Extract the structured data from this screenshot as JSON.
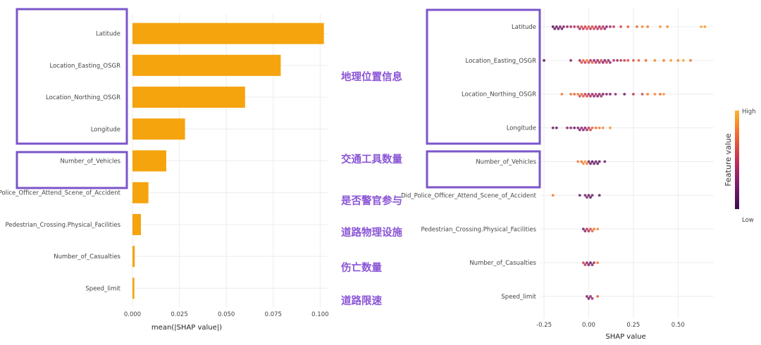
{
  "chart_data": [
    {
      "type": "bar",
      "orientation": "horizontal",
      "title": "",
      "xlabel": "mean(|SHAP value|)",
      "ylabel": "",
      "xlim": [
        0,
        0.104
      ],
      "xticks": [
        0.0,
        0.025,
        0.05,
        0.075,
        0.1
      ],
      "xtick_labels": [
        "0.000",
        "0.025",
        "0.050",
        "0.075",
        "0.100"
      ],
      "color": "#f5a40e",
      "categories": [
        "Latitude",
        "Location_Easting_OSGR",
        "Location_Northing_OSGR",
        "Longitude",
        "Number_of_Vehicles",
        "Did_Police_Officer_Attend_Scene_of_Accident",
        "Pedestrian_Crossing.Physical_Facilities",
        "Number_of_Casualties",
        "Speed_limit"
      ],
      "values": [
        0.102,
        0.079,
        0.06,
        0.028,
        0.018,
        0.0085,
        0.0045,
        0.0012,
        0.001
      ]
    },
    {
      "type": "scatter",
      "subtype": "beeswarm",
      "title": "",
      "xlabel": "SHAP value",
      "ylabel": "",
      "xlim": [
        -0.27,
        0.7
      ],
      "xticks": [
        -0.25,
        0.0,
        0.25,
        0.5
      ],
      "xtick_labels": [
        "-0.25",
        "0.00",
        "0.25",
        "0.50"
      ],
      "categories": [
        "Latitude",
        "Location_Easting_OSGR",
        "Location_Northing_OSGR",
        "Longitude",
        "Number_of_Vehicles",
        "Did_Police_Officer_Attend_Scene_of_Accident",
        "Pedestrian_Crossing.Physical_Facilities",
        "Number_of_Casualties",
        "Speed_limit"
      ],
      "series": [
        {
          "name": "Latitude",
          "x": [
            -0.2,
            -0.19,
            -0.18,
            -0.17,
            -0.16,
            -0.15,
            -0.14,
            -0.12,
            -0.1,
            -0.08,
            -0.06,
            -0.05,
            -0.04,
            -0.03,
            -0.02,
            -0.01,
            0.0,
            0.01,
            0.02,
            0.03,
            0.04,
            0.05,
            0.06,
            0.07,
            0.08,
            0.09,
            0.1,
            0.12,
            0.14,
            0.18,
            0.22,
            0.27,
            0.3,
            0.33,
            0.4,
            0.44,
            0.63,
            0.65
          ],
          "v": [
            0.1,
            0.15,
            0.2,
            0.15,
            0.25,
            0.2,
            0.3,
            0.35,
            0.4,
            0.45,
            0.5,
            0.4,
            0.6,
            0.5,
            0.55,
            0.6,
            0.65,
            0.5,
            0.6,
            0.55,
            0.5,
            0.45,
            0.4,
            0.5,
            0.45,
            0.35,
            0.3,
            0.4,
            0.5,
            0.6,
            0.7,
            0.75,
            0.85,
            0.8,
            0.9,
            0.85,
            0.95,
            0.9
          ]
        },
        {
          "name": "Location_Easting_OSGR",
          "x": [
            -0.25,
            -0.1,
            -0.05,
            -0.04,
            -0.03,
            -0.02,
            -0.01,
            0.0,
            0.01,
            0.02,
            0.03,
            0.04,
            0.05,
            0.06,
            0.07,
            0.08,
            0.09,
            0.1,
            0.11,
            0.12,
            0.14,
            0.16,
            0.18,
            0.2,
            0.22,
            0.25,
            0.28,
            0.32,
            0.37,
            0.42,
            0.46,
            0.5,
            0.53,
            0.57
          ],
          "v": [
            0.1,
            0.3,
            0.4,
            0.6,
            0.7,
            0.5,
            0.8,
            0.6,
            0.4,
            0.7,
            0.3,
            0.5,
            0.35,
            0.45,
            0.6,
            0.3,
            0.25,
            0.55,
            0.3,
            0.35,
            0.45,
            0.4,
            0.5,
            0.55,
            0.6,
            0.65,
            0.7,
            0.75,
            0.85,
            0.8,
            0.9,
            0.85,
            0.95,
            0.8
          ]
        },
        {
          "name": "Location_Northing_OSGR",
          "x": [
            -0.15,
            -0.1,
            -0.08,
            -0.06,
            -0.05,
            -0.04,
            -0.03,
            -0.02,
            -0.01,
            0.0,
            0.01,
            0.02,
            0.03,
            0.04,
            0.05,
            0.06,
            0.07,
            0.08,
            0.1,
            0.12,
            0.15,
            0.2,
            0.25,
            0.3,
            0.33,
            0.37,
            0.4,
            0.42
          ],
          "v": [
            0.8,
            0.75,
            0.7,
            0.8,
            0.6,
            0.7,
            0.65,
            0.5,
            0.6,
            0.4,
            0.45,
            0.35,
            0.3,
            0.5,
            0.25,
            0.3,
            0.4,
            0.2,
            0.3,
            0.25,
            0.35,
            0.2,
            0.5,
            0.6,
            0.8,
            0.85,
            0.75,
            0.9
          ]
        },
        {
          "name": "Longitude",
          "x": [
            -0.2,
            -0.18,
            -0.12,
            -0.1,
            -0.08,
            -0.06,
            -0.05,
            -0.04,
            -0.03,
            -0.02,
            -0.01,
            0.0,
            0.01,
            0.02,
            0.04,
            0.06,
            0.08,
            0.12
          ],
          "v": [
            0.2,
            0.15,
            0.3,
            0.25,
            0.2,
            0.3,
            0.25,
            0.35,
            0.3,
            0.25,
            0.4,
            0.5,
            0.6,
            0.7,
            0.75,
            0.8,
            0.85,
            0.9
          ]
        },
        {
          "name": "Number_of_Vehicles",
          "x": [
            -0.06,
            -0.04,
            -0.03,
            -0.02,
            -0.01,
            0.0,
            0.01,
            0.02,
            0.03,
            0.04,
            0.05,
            0.06,
            0.09
          ],
          "v": [
            0.8,
            0.75,
            0.85,
            0.9,
            0.8,
            0.2,
            0.15,
            0.1,
            0.15,
            0.2,
            0.15,
            0.1,
            0.2
          ]
        },
        {
          "name": "Did_Police_Officer_Attend_Scene_of_Accident",
          "x": [
            -0.2,
            -0.05,
            -0.02,
            -0.01,
            0.0,
            0.01,
            0.02,
            0.06
          ],
          "v": [
            0.8,
            0.2,
            0.25,
            0.3,
            0.15,
            0.1,
            0.2,
            0.15
          ]
        },
        {
          "name": "Pedestrian_Crossing.Physical_Facilities",
          "x": [
            -0.03,
            -0.02,
            -0.01,
            0.0,
            0.01,
            0.02,
            0.03,
            0.05
          ],
          "v": [
            0.2,
            0.3,
            0.5,
            0.4,
            0.6,
            0.7,
            0.8,
            0.85
          ]
        },
        {
          "name": "Number_of_Casualties",
          "x": [
            -0.03,
            -0.02,
            -0.01,
            0.0,
            0.01,
            0.02,
            0.03,
            0.05
          ],
          "v": [
            0.6,
            0.5,
            0.3,
            0.2,
            0.15,
            0.3,
            0.4,
            0.8
          ]
        },
        {
          "name": "Speed_limit",
          "x": [
            -0.01,
            0.0,
            0.01,
            0.02,
            0.05
          ],
          "v": [
            0.3,
            0.2,
            0.25,
            0.4,
            0.7
          ]
        }
      ],
      "colorbar": {
        "title": "Feature value",
        "high_label": "High",
        "low_label": "Low"
      }
    }
  ],
  "annotations": {
    "geo": "地理位置信息",
    "vehicles": "交通工具数量",
    "police": "是否警官参与",
    "road": "道路物理设施",
    "casualties": "伤亡数量",
    "speed": "道路限速"
  },
  "colors": {
    "bar": "#f5a40e",
    "highlight": "#7b55c9",
    "annotation": "#8a55d6",
    "low": "#3b0f4f",
    "high": "#fdb42f"
  }
}
